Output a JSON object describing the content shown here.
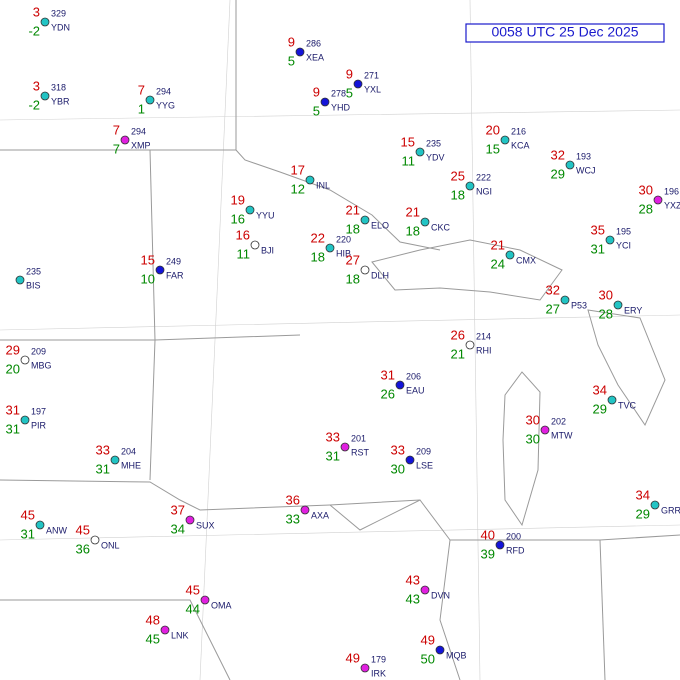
{
  "title": "0058 UTC 25 Dec 2025",
  "stations": [
    {
      "id": "YDN",
      "temp": 3,
      "dew": -2,
      "pressure": 329
    },
    {
      "id": "YBR",
      "temp": 3,
      "dew": -2,
      "pressure": 318
    },
    {
      "id": "YYG",
      "temp": 7,
      "dew": 1,
      "pressure": 294
    },
    {
      "id": "XMP",
      "temp": 7,
      "dew": 7,
      "pressure": 294
    },
    {
      "id": "XEA",
      "temp": 9,
      "dew": 5,
      "pressure": 286
    },
    {
      "id": "YXL",
      "temp": 9,
      "dew": 5,
      "pressure": 271
    },
    {
      "id": "YHD",
      "temp": 9,
      "dew": 5,
      "pressure": 278
    },
    {
      "id": "YDV",
      "temp": 15,
      "dew": 11,
      "pressure": 235
    },
    {
      "id": "KCA",
      "temp": 20,
      "dew": 15,
      "pressure": 216
    },
    {
      "id": "WCJ",
      "temp": 32,
      "dew": 29,
      "pressure": 193
    },
    {
      "id": "YXZ",
      "temp": 30,
      "dew": 28,
      "pressure": 196
    },
    {
      "id": "YYU",
      "temp": 19,
      "dew": 16
    },
    {
      "id": "NGI",
      "temp": 25,
      "dew": 18,
      "pressure": 222
    },
    {
      "id": "ELO",
      "temp": 21,
      "dew": 18
    },
    {
      "id": "CKC",
      "temp": 21,
      "dew": 18
    },
    {
      "id": "INL",
      "temp": 17,
      "dew": 12
    },
    {
      "id": "BJI",
      "temp": 16,
      "dew": 11
    },
    {
      "id": "HIB",
      "temp": 22,
      "dew": 18,
      "pressure": 220
    },
    {
      "id": "FAR",
      "temp": 15,
      "dew": 10,
      "pressure": 249
    },
    {
      "id": "DLH",
      "temp": 27,
      "dew": 18
    },
    {
      "id": "CMX",
      "temp": 21,
      "dew": 24
    },
    {
      "id": "YCI",
      "temp": 35,
      "dew": 31,
      "pressure": 195
    },
    {
      "id": "BIS",
      "pressure": 235
    },
    {
      "id": "MBG",
      "temp": 29,
      "dew": 20,
      "pressure": 209
    },
    {
      "id": "PIR",
      "temp": 31,
      "dew": 31,
      "pressure": 197
    },
    {
      "id": "RHI",
      "temp": 26,
      "dew": 21,
      "pressure": 214
    },
    {
      "id": "EAU",
      "temp": 31,
      "dew": 26,
      "pressure": 206
    },
    {
      "id": "ERY",
      "temp": 30,
      "dew": 28
    },
    {
      "id": "P53",
      "temp": 32,
      "dew": 27
    },
    {
      "id": "TVC",
      "temp": 34,
      "dew": 29
    },
    {
      "id": "MTW",
      "temp": 30,
      "dew": 30,
      "pressure": 202
    },
    {
      "id": "RST",
      "temp": 33,
      "dew": 31,
      "pressure": 201
    },
    {
      "id": "LSE",
      "temp": 33,
      "dew": 30,
      "pressure": 209
    },
    {
      "id": "MHE",
      "temp": 33,
      "dew": 31,
      "pressure": 204
    },
    {
      "id": "GRR",
      "temp": 34,
      "dew": 29
    },
    {
      "id": "SUX",
      "temp": 37,
      "dew": 34
    },
    {
      "id": "AXA",
      "temp": 36,
      "dew": 33
    },
    {
      "id": "ANW",
      "temp": 45,
      "dew": 31
    },
    {
      "id": "ONL",
      "temp": 45,
      "dew": 36
    },
    {
      "id": "RFD",
      "temp": 40,
      "dew": 39,
      "pressure": 200
    },
    {
      "id": "DVN",
      "temp": 43,
      "dew": 43
    },
    {
      "id": "OMA",
      "temp": 45,
      "dew": 44
    },
    {
      "id": "LNK",
      "temp": 48,
      "dew": 45
    },
    {
      "id": "IRK",
      "temp": 49,
      "pressure": 179
    },
    {
      "id": "MQB",
      "temp": 49,
      "dew": 50
    }
  ]
}
